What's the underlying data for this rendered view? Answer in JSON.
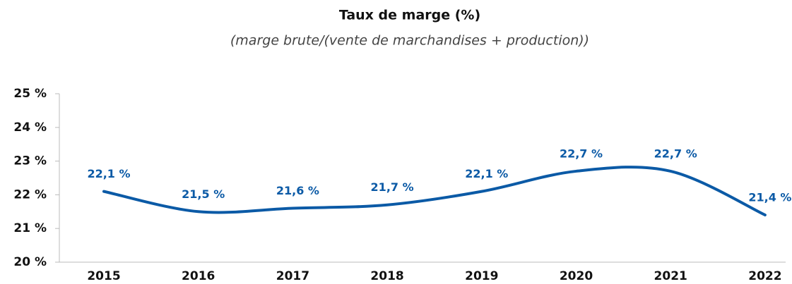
{
  "chart_data": {
    "type": "line",
    "title": "Taux de marge (%)",
    "subtitle": "(marge brute/(vente de marchandises + production))",
    "categories": [
      "2015",
      "2016",
      "2017",
      "2018",
      "2019",
      "2020",
      "2021",
      "2022"
    ],
    "series": [
      {
        "name": "Taux de marge",
        "color": "#0b5aa6",
        "values": [
          22.1,
          21.5,
          21.6,
          21.7,
          22.1,
          22.7,
          22.7,
          21.4
        ],
        "value_labels": [
          "22,1 %",
          "21,5 %",
          "21,6 %",
          "21,7 %",
          "22,1 %",
          "22,7 %",
          "22,7 %",
          "21,4 %"
        ]
      }
    ],
    "ylim": [
      20,
      25
    ],
    "yticks": [
      {
        "value": 20,
        "label": "20 %"
      },
      {
        "value": 21,
        "label": "21 %"
      },
      {
        "value": 22,
        "label": "22 %"
      },
      {
        "value": 23,
        "label": "23 %"
      },
      {
        "value": 24,
        "label": "24 %"
      },
      {
        "value": 25,
        "label": "25 %"
      }
    ],
    "smooth": true
  }
}
